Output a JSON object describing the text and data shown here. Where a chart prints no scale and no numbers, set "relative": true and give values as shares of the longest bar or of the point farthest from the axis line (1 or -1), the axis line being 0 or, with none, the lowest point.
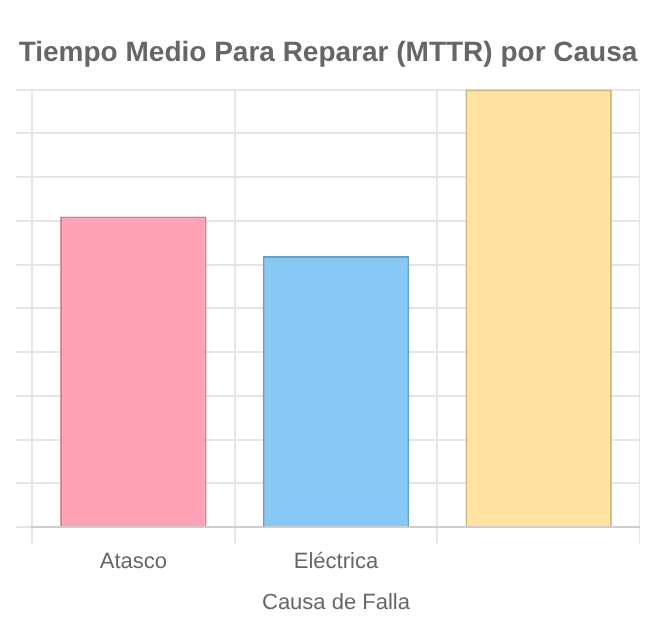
{
  "chart_data": {
    "type": "bar",
    "title": "Tiempo Medio Para Reparar (MTTR) por Causa",
    "xlabel": "Causa de Falla",
    "categories": [
      "Atasco",
      "Eléctrica",
      null
    ],
    "values": [
      0.71,
      0.62,
      1
    ],
    "colors": [
      "#ffa1b5",
      "#86c7f3",
      "#ffe2a0"
    ],
    "relative": true,
    "grid": true,
    "legend": false
  }
}
